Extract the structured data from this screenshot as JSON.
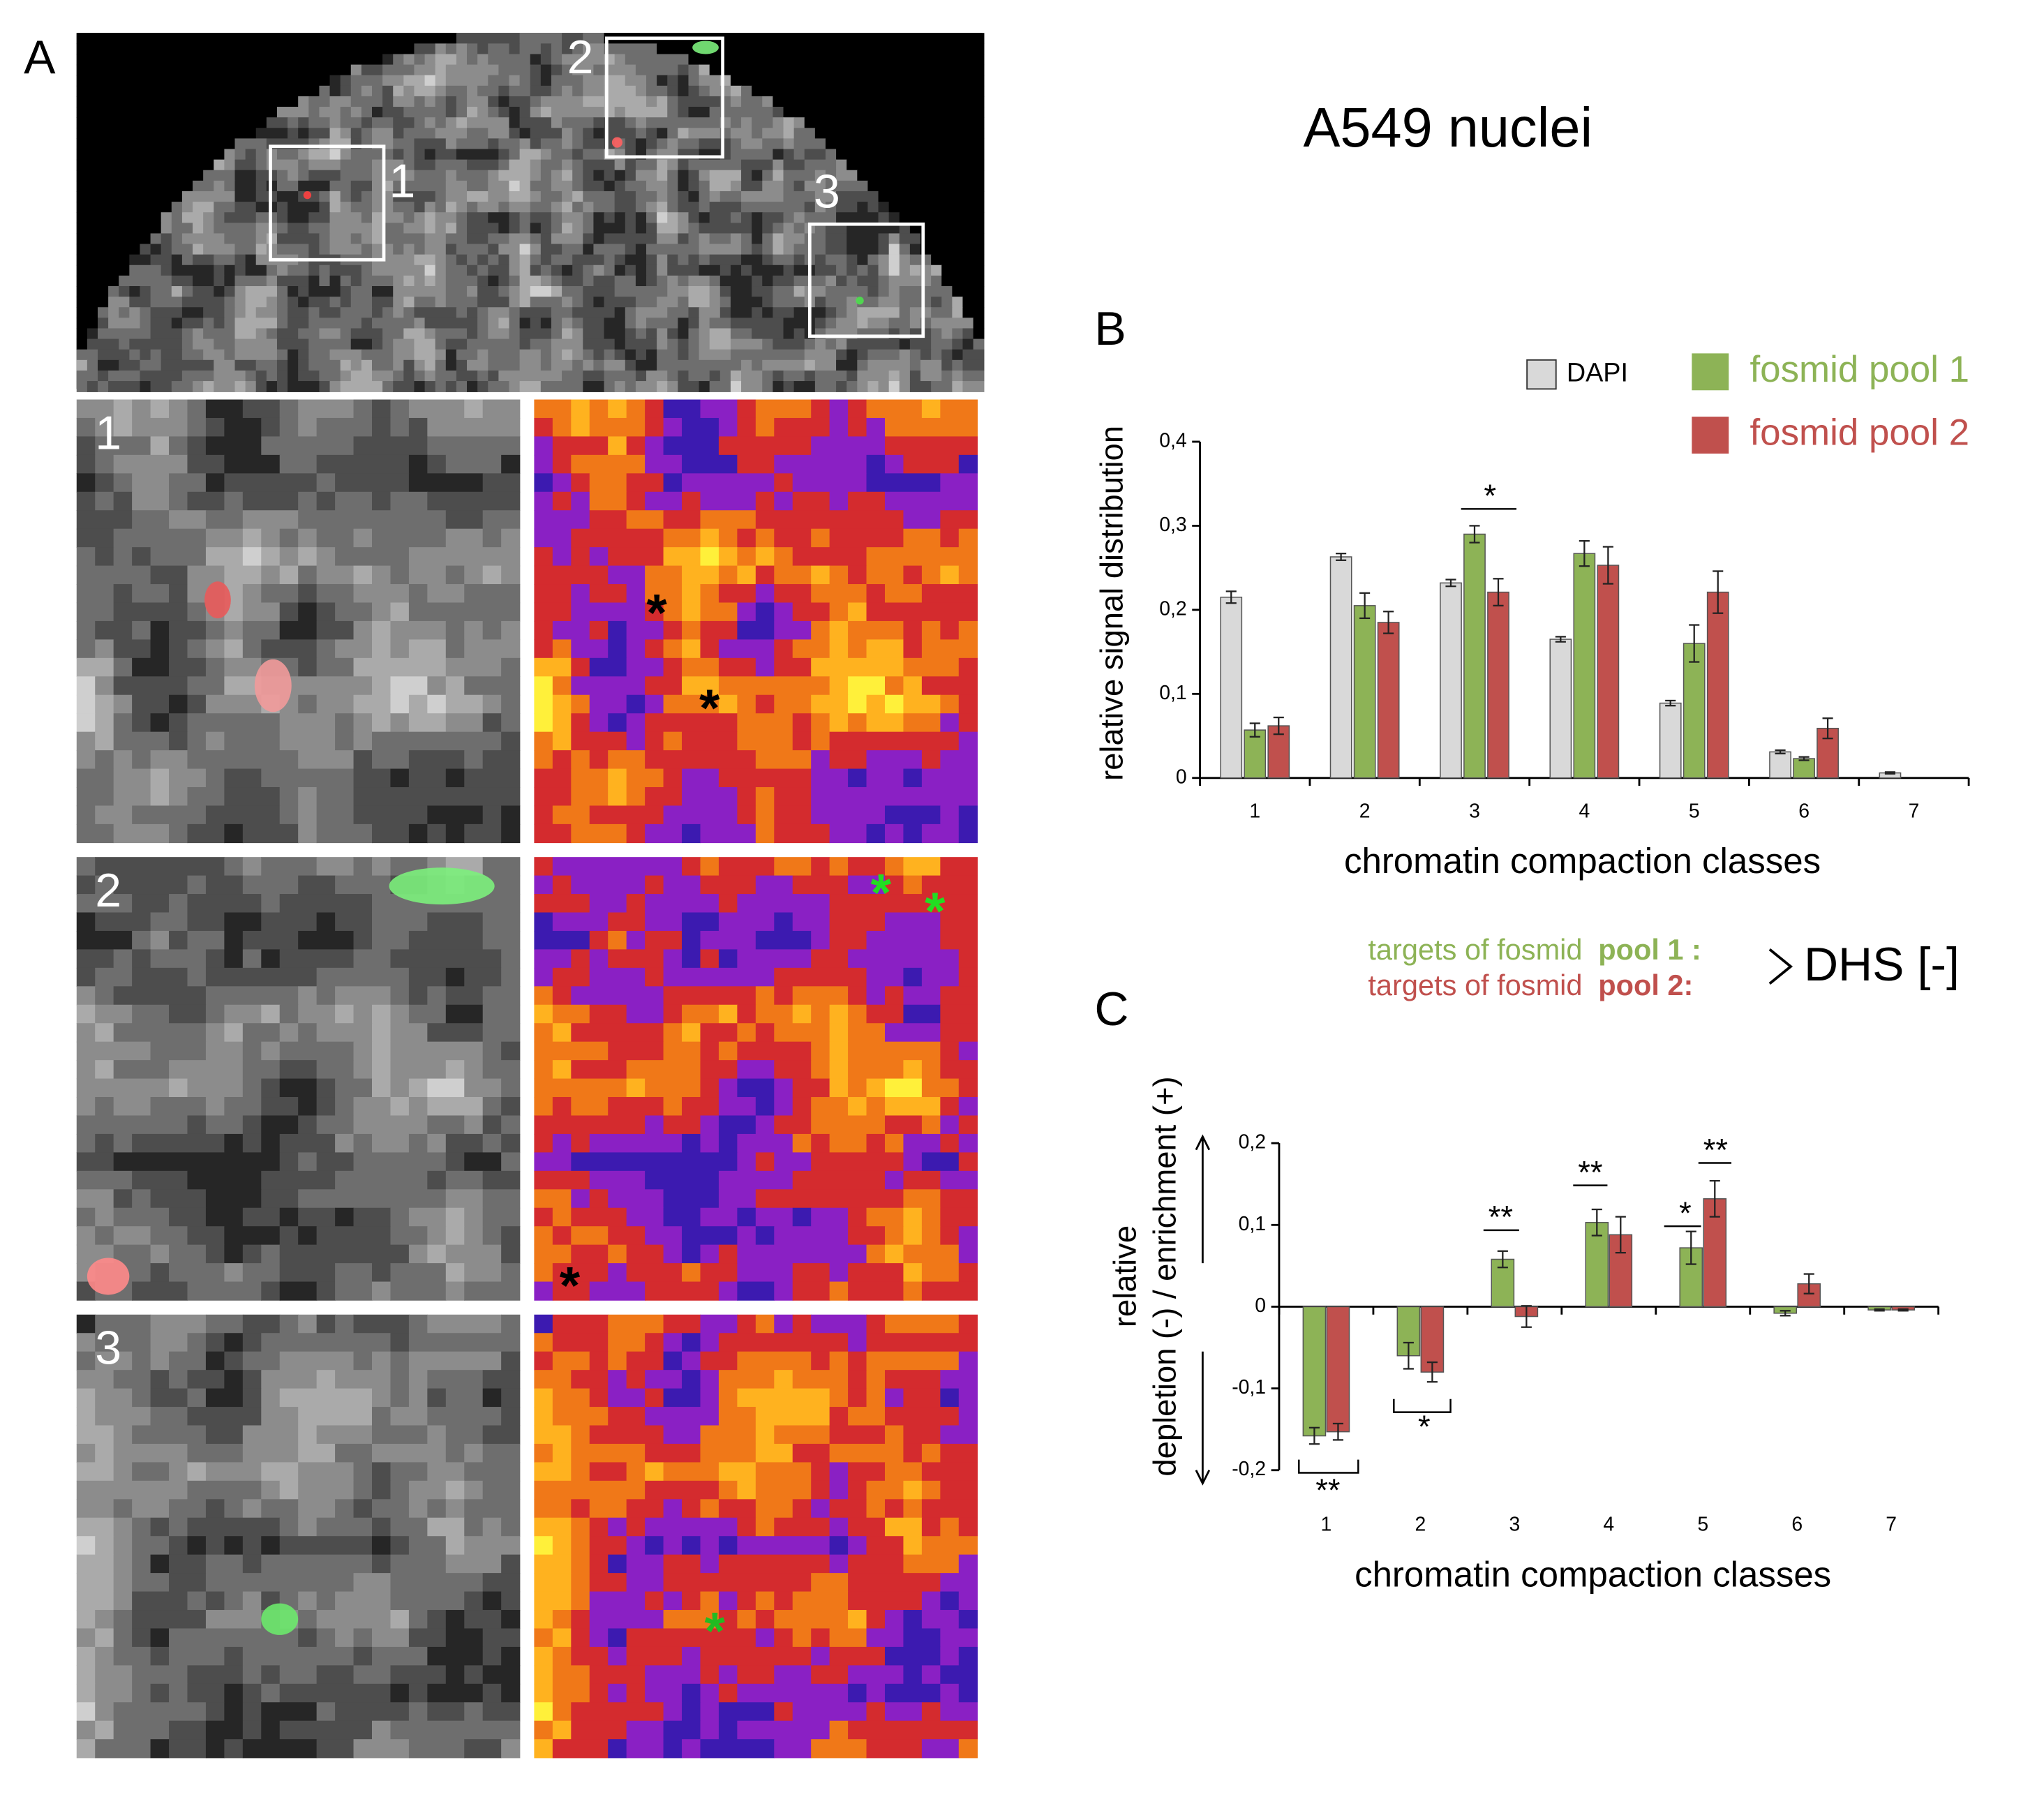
{
  "figure": {
    "title": "A549 nuclei",
    "panel_labels": [
      "A",
      "B",
      "C"
    ],
    "region_labels": [
      "1",
      "2",
      "3"
    ],
    "markers": [
      "*",
      "*",
      "*",
      "*",
      "*",
      "*"
    ]
  },
  "chart_data": [
    {
      "type": "bar",
      "y_label": "relative signal distribution",
      "x_label": "chromatin compaction classes",
      "categories": [
        "1",
        "2",
        "3",
        "4",
        "5",
        "6",
        "7"
      ],
      "series": [
        {
          "name": "DAPI",
          "color": "#d9d9d9",
          "values": [
            0.215,
            0.263,
            0.232,
            0.165,
            0.089,
            0.031,
            0.006
          ],
          "errors": [
            0.007,
            0.004,
            0.004,
            0.003,
            0.003,
            0.002,
            0.001
          ]
        },
        {
          "name": "fosmid pool 1",
          "color": "#8db356",
          "values": [
            0.057,
            0.205,
            0.29,
            0.267,
            0.16,
            0.023,
            null
          ],
          "errors": [
            0.008,
            0.015,
            0.01,
            0.015,
            0.022,
            0.002,
            null
          ]
        },
        {
          "name": "fosmid pool 2",
          "color": "#c0504d",
          "values": [
            0.062,
            0.185,
            0.221,
            0.253,
            0.221,
            0.059,
            null
          ],
          "errors": [
            0.01,
            0.013,
            0.016,
            0.022,
            0.025,
            0.012,
            null
          ]
        }
      ],
      "ylim": [
        0,
        0.4
      ],
      "yticks": [
        0,
        {
          "value": 0.1,
          "label": "0,1"
        },
        {
          "value": 0.2,
          "label": "0,2"
        },
        {
          "value": 0.3,
          "label": "0,3"
        },
        {
          "value": 0.4,
          "label": "0,4"
        }
      ],
      "annotations": [
        {
          "text": "*"
        }
      ]
    },
    {
      "type": "bar",
      "y_label": [
        "relative",
        "depletion (-) / enrichment (+)"
      ],
      "x_label": "chromatin compaction classes",
      "legend_prefix": "targets of fosmid",
      "legend_note": "DHS [-]",
      "categories": [
        "1",
        "2",
        "3",
        "4",
        "5",
        "6",
        "7"
      ],
      "series": [
        {
          "name": "pool 1 :",
          "color": "#8db356",
          "values": [
            -0.158,
            -0.06,
            0.058,
            0.103,
            0.072,
            -0.008,
            -0.004
          ],
          "errors": [
            0.01,
            0.016,
            0.01,
            0.016,
            0.02,
            0.003,
            0.001
          ]
        },
        {
          "name": "pool 2:",
          "color": "#c0504d",
          "values": [
            -0.153,
            -0.08,
            -0.012,
            0.088,
            0.132,
            0.028,
            -0.004
          ],
          "errors": [
            0.01,
            0.012,
            0.013,
            0.022,
            0.022,
            0.012,
            0.001
          ]
        }
      ],
      "ylim": [
        -0.2,
        0.2
      ],
      "yticks": [
        {
          "value": -0.2,
          "label": "-0,2"
        },
        {
          "value": -0.1,
          "label": "-0,1"
        },
        0,
        {
          "value": 0.1,
          "label": "0,1"
        },
        {
          "value": 0.2,
          "label": "0,2"
        }
      ],
      "annotations": [
        {
          "text": "**"
        },
        {
          "text": "*"
        },
        {
          "text": "**"
        },
        {
          "text": "**"
        },
        {
          "text": "*"
        },
        {
          "text": "**"
        }
      ]
    }
  ]
}
